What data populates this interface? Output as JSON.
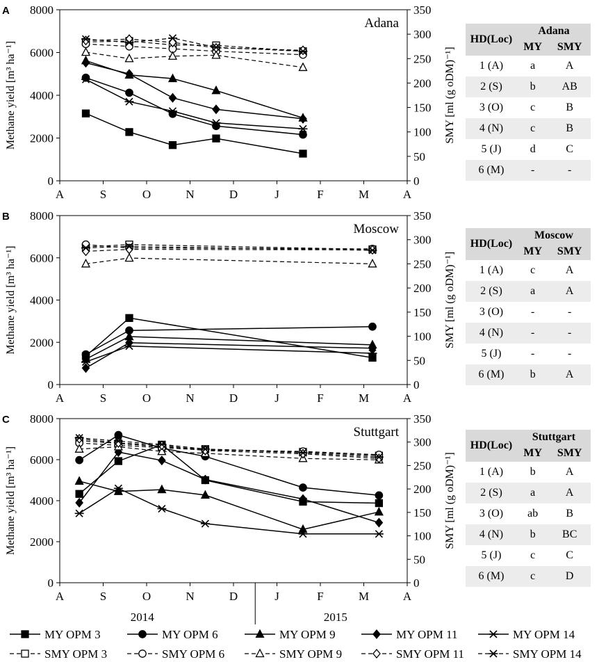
{
  "chart_data": [
    {
      "type": "line",
      "panel_label": "A",
      "title": "Adana",
      "ylabel": "Methane yield [m³ ha⁻¹]",
      "y2label": "SMY [ml (g oDM)⁻¹]",
      "ylim": [
        0,
        8000
      ],
      "y2lim": [
        0,
        350
      ],
      "yticks": [
        0,
        2000,
        4000,
        6000,
        8000
      ],
      "y2ticks": [
        0,
        50,
        100,
        150,
        200,
        250,
        300,
        350
      ],
      "xtick_labels": [
        "A",
        "S",
        "O",
        "N",
        "D",
        "J",
        "F",
        "M",
        "A"
      ],
      "x": [
        0.6,
        1.6,
        2.6,
        3.6,
        5.6
      ],
      "series": [
        {
          "name": "MY OPM 3",
          "axis": "left",
          "values": [
            3150,
            2280,
            1670,
            1980,
            1270
          ]
        },
        {
          "name": "MY OPM 6",
          "axis": "left",
          "values": [
            4820,
            4120,
            3130,
            2560,
            2160
          ]
        },
        {
          "name": "MY OPM 9",
          "axis": "left",
          "values": [
            5620,
            4950,
            4780,
            4220,
            2940
          ]
        },
        {
          "name": "MY OPM 11",
          "axis": "left",
          "values": [
            5520,
            5000,
            3880,
            3340,
            2900
          ]
        },
        {
          "name": "MY OPM 14",
          "axis": "left",
          "values": [
            4740,
            3700,
            3260,
            2710,
            2430
          ]
        },
        {
          "name": "SMY OPM 3",
          "axis": "right",
          "values": [
            284,
            286,
            278,
            277,
            265
          ]
        },
        {
          "name": "SMY OPM 6",
          "axis": "right",
          "values": [
            280,
            275,
            270,
            265,
            258
          ]
        },
        {
          "name": "SMY OPM 9",
          "axis": "right",
          "values": [
            263,
            250,
            255,
            257,
            232
          ]
        },
        {
          "name": "SMY OPM 11",
          "axis": "right",
          "values": [
            287,
            290,
            283,
            272,
            267
          ]
        },
        {
          "name": "SMY OPM 14",
          "axis": "right",
          "values": [
            290,
            283,
            292,
            273,
            265
          ]
        }
      ]
    },
    {
      "type": "line",
      "panel_label": "B",
      "title": "Moscow",
      "ylabel": "Methane yield [m³ ha⁻¹]",
      "y2label": "SMY [ml (g oDM)⁻¹]",
      "ylim": [
        0,
        8000
      ],
      "y2lim": [
        0,
        350
      ],
      "yticks": [
        0,
        2000,
        4000,
        6000,
        8000
      ],
      "y2ticks": [
        0,
        50,
        100,
        150,
        200,
        250,
        300,
        350
      ],
      "xtick_labels": [
        "A",
        "S",
        "O",
        "N",
        "D",
        "J",
        "F",
        "M",
        "A"
      ],
      "x": [
        0.6,
        1.6,
        7.2
      ],
      "series": [
        {
          "name": "MY OPM 3",
          "axis": "left",
          "values": [
            1350,
            3150,
            1270
          ]
        },
        {
          "name": "MY OPM 6",
          "axis": "left",
          "values": [
            1430,
            2560,
            2740
          ]
        },
        {
          "name": "MY OPM 9",
          "axis": "left",
          "values": [
            1200,
            2270,
            1880
          ]
        },
        {
          "name": "MY OPM 11",
          "axis": "left",
          "values": [
            780,
            1980,
            1720
          ]
        },
        {
          "name": "MY OPM 14",
          "axis": "left",
          "values": [
            1070,
            1820,
            1480
          ]
        },
        {
          "name": "SMY OPM 3",
          "axis": "right",
          "values": [
            285,
            290,
            280
          ]
        },
        {
          "name": "SMY OPM 6",
          "axis": "right",
          "values": [
            290,
            283,
            281
          ]
        },
        {
          "name": "SMY OPM 9",
          "axis": "right",
          "values": [
            250,
            262,
            250
          ]
        },
        {
          "name": "SMY OPM 11",
          "axis": "right",
          "values": [
            276,
            280,
            279
          ]
        },
        {
          "name": "SMY OPM 14",
          "axis": "right",
          "values": [
            283,
            286,
            278
          ]
        }
      ]
    },
    {
      "type": "line",
      "panel_label": "C",
      "title": "Stuttgart",
      "ylabel": "Methane yield [m³ ha⁻¹]",
      "y2label": "SMY [ml (g oDM)⁻¹]",
      "ylim": [
        0,
        8000
      ],
      "y2lim": [
        0,
        350
      ],
      "yticks": [
        0,
        2000,
        4000,
        6000,
        8000
      ],
      "y2ticks": [
        0,
        50,
        100,
        150,
        200,
        250,
        300,
        350
      ],
      "xtick_labels": [
        "A",
        "S",
        "O",
        "N",
        "D",
        "J",
        "F",
        "M",
        "A"
      ],
      "year_labels": [
        "2014",
        "2015"
      ],
      "x": [
        0.45,
        1.35,
        2.35,
        3.35,
        5.6,
        7.35
      ],
      "series": [
        {
          "name": "MY OPM 3",
          "axis": "left",
          "values": [
            4330,
            5930,
            6730,
            5000,
            3950,
            3880
          ]
        },
        {
          "name": "MY OPM 6",
          "axis": "left",
          "values": [
            5980,
            7200,
            6560,
            6160,
            4640,
            4260
          ]
        },
        {
          "name": "MY OPM 9",
          "axis": "left",
          "values": [
            4950,
            4450,
            4540,
            4270,
            2600,
            3450
          ]
        },
        {
          "name": "MY OPM 11",
          "axis": "left",
          "values": [
            3900,
            6370,
            5960,
            5030,
            4080,
            2930
          ]
        },
        {
          "name": "MY OPM 14",
          "axis": "left",
          "values": [
            3380,
            4600,
            3610,
            2880,
            2380,
            2380
          ]
        },
        {
          "name": "SMY OPM 3",
          "axis": "right",
          "values": [
            303,
            297,
            290,
            285,
            279,
            271
          ]
        },
        {
          "name": "SMY OPM 6",
          "axis": "right",
          "values": [
            298,
            293,
            288,
            283,
            280,
            273
          ]
        },
        {
          "name": "SMY OPM 9",
          "axis": "right",
          "values": [
            285,
            290,
            280,
            276,
            265,
            262
          ]
        },
        {
          "name": "SMY OPM 11",
          "axis": "right",
          "values": [
            307,
            298,
            293,
            282,
            275,
            265
          ]
        },
        {
          "name": "SMY OPM 14",
          "axis": "right",
          "values": [
            309,
            302,
            295,
            285,
            277,
            268
          ]
        }
      ]
    }
  ],
  "legend": [
    {
      "label": "MY OPM 3",
      "marker": "square-filled",
      "dash": false
    },
    {
      "label": "MY OPM 6",
      "marker": "circle-filled",
      "dash": false
    },
    {
      "label": "MY OPM 9",
      "marker": "triangle-filled",
      "dash": false
    },
    {
      "label": "MY OPM 11",
      "marker": "diamond-filled",
      "dash": false
    },
    {
      "label": "MY OPM 14",
      "marker": "star",
      "dash": false
    },
    {
      "label": "SMY OPM 3",
      "marker": "square-open",
      "dash": true
    },
    {
      "label": "SMY OPM 6",
      "marker": "circle-open",
      "dash": true
    },
    {
      "label": "SMY OPM 9",
      "marker": "triangle-open",
      "dash": true
    },
    {
      "label": "SMY OPM 11",
      "marker": "diamond-open",
      "dash": true
    },
    {
      "label": "SMY OPM 14",
      "marker": "star",
      "dash": true
    }
  ],
  "tables": [
    {
      "location": "Adana",
      "header_hd": "HD(Loc)",
      "col_my": "MY",
      "col_smy": "SMY",
      "rows": [
        {
          "hd": "1 (A)",
          "my": "a",
          "smy": "A"
        },
        {
          "hd": "2 (S)",
          "my": "b",
          "smy": "AB"
        },
        {
          "hd": "3 (O)",
          "my": "c",
          "smy": "B"
        },
        {
          "hd": "4 (N)",
          "my": "c",
          "smy": "B"
        },
        {
          "hd": "5 (J)",
          "my": "d",
          "smy": "C"
        },
        {
          "hd": "6 (M)",
          "my": "-",
          "smy": "-"
        }
      ]
    },
    {
      "location": "Moscow",
      "header_hd": "HD(Loc)",
      "col_my": "MY",
      "col_smy": "SMY",
      "rows": [
        {
          "hd": "1 (A)",
          "my": "c",
          "smy": "A"
        },
        {
          "hd": "2 (S)",
          "my": "a",
          "smy": "A"
        },
        {
          "hd": "3 (O)",
          "my": "-",
          "smy": "-"
        },
        {
          "hd": "4 (N)",
          "my": "-",
          "smy": "-"
        },
        {
          "hd": "5 (J)",
          "my": "-",
          "smy": "-"
        },
        {
          "hd": "6 (M)",
          "my": "b",
          "smy": "A"
        }
      ]
    },
    {
      "location": "Stuttgart",
      "header_hd": "HD(Loc)",
      "col_my": "MY",
      "col_smy": "SMY",
      "rows": [
        {
          "hd": "1 (A)",
          "my": "b",
          "smy": "A"
        },
        {
          "hd": "2 (S)",
          "my": "a",
          "smy": "A"
        },
        {
          "hd": "3 (O)",
          "my": "ab",
          "smy": "B"
        },
        {
          "hd": "4 (N)",
          "my": "b",
          "smy": "BC"
        },
        {
          "hd": "5 (J)",
          "my": "c",
          "smy": "C"
        },
        {
          "hd": "6 (M)",
          "my": "c",
          "smy": "D"
        }
      ]
    }
  ]
}
